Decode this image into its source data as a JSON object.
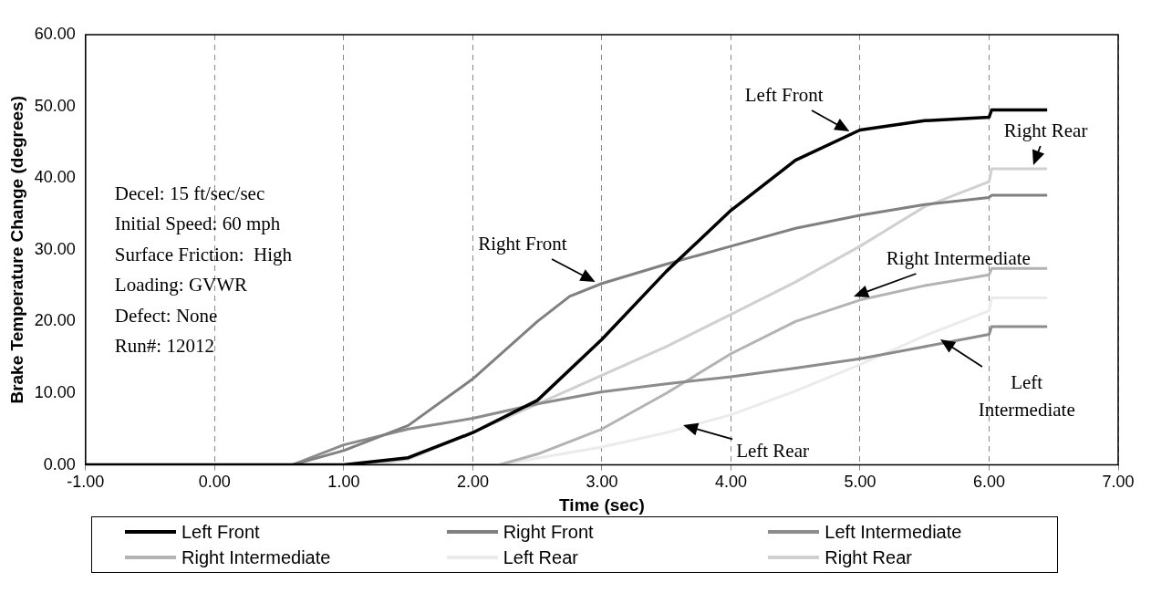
{
  "chart_data": {
    "type": "line",
    "xlabel": "Time (sec)",
    "ylabel": "Brake Temperature Change (degrees)",
    "xlim": [
      -1,
      7
    ],
    "ylim": [
      0,
      60
    ],
    "xticks": [
      {
        "value": -1,
        "label": "-1.00"
      },
      {
        "value": 0,
        "label": "0.00"
      },
      {
        "value": 1,
        "label": "1.00"
      },
      {
        "value": 2,
        "label": "2.00"
      },
      {
        "value": 3,
        "label": "3.00"
      },
      {
        "value": 4,
        "label": "4.00"
      },
      {
        "value": 5,
        "label": "5.00"
      },
      {
        "value": 6,
        "label": "6.00"
      },
      {
        "value": 7,
        "label": "7.00"
      }
    ],
    "yticks": [
      {
        "value": 0,
        "label": "0.00"
      },
      {
        "value": 10,
        "label": "10.00"
      },
      {
        "value": 20,
        "label": "20.00"
      },
      {
        "value": 30,
        "label": "30.00"
      },
      {
        "value": 40,
        "label": "40.00"
      },
      {
        "value": 50,
        "label": "50.00"
      },
      {
        "value": 60,
        "label": "60.00"
      }
    ],
    "grid": "x",
    "legend": "bottom",
    "marker": "none",
    "line_style": "solid",
    "series": [
      {
        "name": "Left Front",
        "color": "#000000",
        "x": [
          -1,
          0,
          1,
          1.5,
          2,
          2.5,
          3,
          3.5,
          4,
          4.5,
          5,
          5.5,
          6,
          6.02,
          6.45
        ],
        "values": [
          0,
          0,
          0,
          1,
          4.5,
          9,
          17.5,
          27,
          35.5,
          42.5,
          46.7,
          48,
          48.5,
          49.5,
          49.5
        ]
      },
      {
        "name": "Right Front",
        "color": "#808080",
        "x": [
          -1,
          0.6,
          1,
          1.5,
          2,
          2.5,
          2.75,
          3,
          3.5,
          4,
          4.5,
          5,
          5.5,
          6,
          6.02,
          6.45
        ],
        "values": [
          0,
          0,
          2,
          5.5,
          12,
          20,
          23.5,
          25.3,
          28,
          30.5,
          33,
          34.8,
          36.3,
          37.3,
          37.6,
          37.6
        ]
      },
      {
        "name": "Left Intermediate",
        "color": "#8c8c8c",
        "x": [
          -1,
          0.6,
          1,
          1.5,
          2,
          2.5,
          3,
          3.5,
          4,
          4.5,
          5,
          5.5,
          6,
          6.02,
          6.45
        ],
        "values": [
          0,
          0,
          2.8,
          5,
          6.5,
          8.5,
          10.2,
          11.3,
          12.3,
          13.5,
          14.8,
          16.5,
          18.2,
          19.3,
          19.3
        ]
      },
      {
        "name": "Right Intermediate",
        "color": "#b3b3b3",
        "x": [
          -1,
          2.2,
          2.5,
          3,
          3.5,
          4,
          4.5,
          5,
          5.5,
          6,
          6.02,
          6.45
        ],
        "values": [
          0,
          0,
          1.5,
          5,
          10,
          15.5,
          20,
          23,
          25,
          26.5,
          27.4,
          27.4
        ]
      },
      {
        "name": "Left Rear",
        "color": "#ebebeb",
        "x": [
          -1,
          2.2,
          3,
          3.5,
          4,
          4.5,
          5,
          5.5,
          6,
          6.02,
          6.45
        ],
        "values": [
          0,
          0,
          2.5,
          4.5,
          7,
          10.3,
          14,
          18,
          21.5,
          23.3,
          23.3
        ]
      },
      {
        "name": "Right Rear",
        "color": "#d0d0d0",
        "x": [
          -1,
          1.2,
          1.5,
          2,
          2.5,
          3,
          3.5,
          4,
          4.5,
          5,
          5.5,
          6,
          6.02,
          6.45
        ],
        "values": [
          0,
          0,
          0.8,
          4.5,
          8.5,
          12.5,
          16.5,
          21,
          25.5,
          30.5,
          36,
          39.5,
          41.3,
          41.3
        ]
      }
    ],
    "annotations": [
      {
        "text": "Left Front",
        "x": 4.92,
        "y": 46.5
      },
      {
        "text": "Right Rear",
        "x": 6.34,
        "y": 41.8
      },
      {
        "text": "Right Front",
        "x": 2.95,
        "y": 25.5
      },
      {
        "text": "Right Intermediate",
        "x": 4.95,
        "y": 23.5
      },
      {
        "text": "Left\nIntermediate",
        "x": 5.62,
        "y": 17.5
      },
      {
        "text": "Left Rear",
        "x": 3.63,
        "y": 5.5
      },
      "Decel: 15 ft/sec/sec",
      "Initial Speed: 60 mph",
      "Surface Friction:  High",
      "Loading: GVWR",
      "Defect: None",
      "Run#: 12012"
    ]
  }
}
